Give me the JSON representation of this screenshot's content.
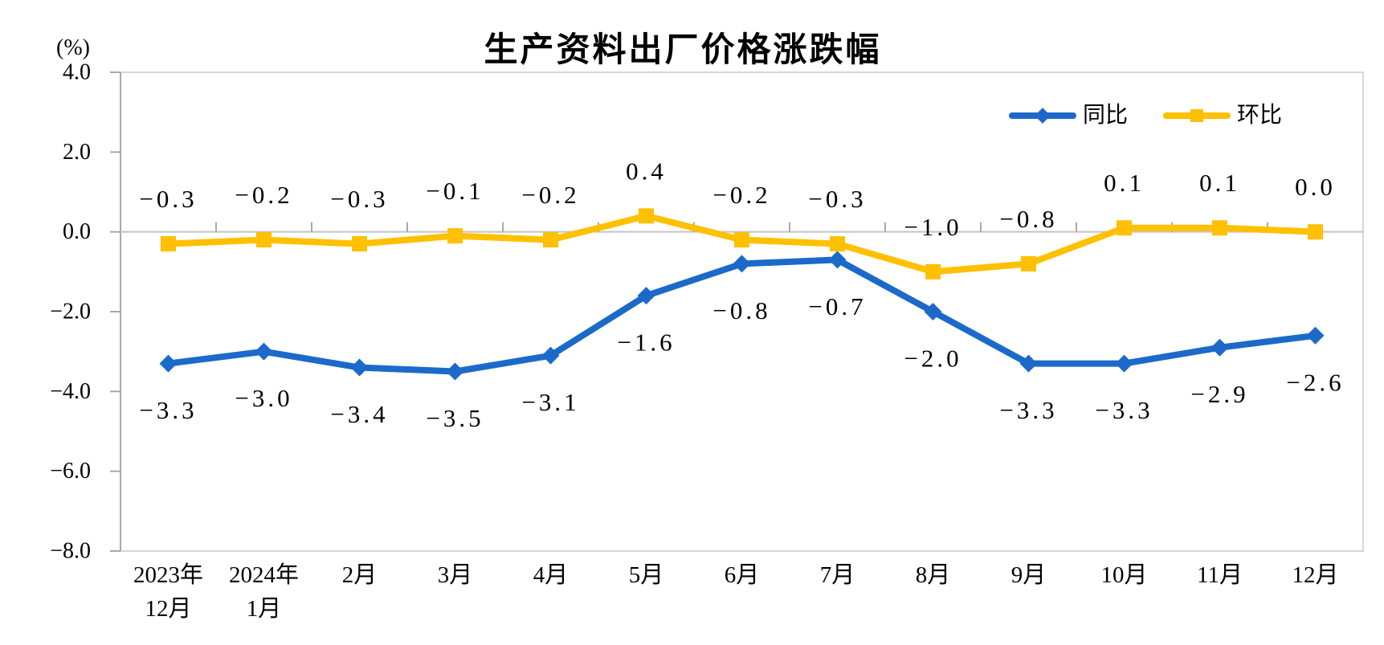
{
  "chart_data": {
    "type": "line",
    "title": "生产资料出厂价格涨跌幅",
    "unit_label": "(%)",
    "categories": [
      "2023年\n12月",
      "2024年\n1月",
      "2月",
      "3月",
      "4月",
      "5月",
      "6月",
      "7月",
      "8月",
      "9月",
      "10月",
      "11月",
      "12月"
    ],
    "series": [
      {
        "name": "同比",
        "color": "#1b6ac9",
        "marker": "diamond",
        "label_position": "below",
        "values": [
          -3.3,
          -3.0,
          -3.4,
          -3.5,
          -3.1,
          -1.6,
          -0.8,
          -0.7,
          -2.0,
          -3.3,
          -3.3,
          -2.9,
          -2.6
        ]
      },
      {
        "name": "环比",
        "color": "#ffc000",
        "marker": "square",
        "label_position": "above",
        "values": [
          -0.3,
          -0.2,
          -0.3,
          -0.1,
          -0.2,
          0.4,
          -0.2,
          -0.3,
          -1.0,
          -0.8,
          0.1,
          0.1,
          0.0
        ]
      }
    ],
    "ylim": [
      -8,
      4
    ],
    "ytick_step": 2,
    "ytick_labels": [
      "4.0",
      "2.0",
      "0.0",
      "-2.0",
      "-4.0",
      "-6.0",
      "-8.0"
    ],
    "legend_position": "top-right",
    "gridlines": "zero-line-only",
    "data_labels_shown": true,
    "frame_color": "#d7d7d7",
    "axis_color": "#a8a8a8",
    "zero_line_color": "#c2c2c2",
    "text_color": "#000000"
  }
}
